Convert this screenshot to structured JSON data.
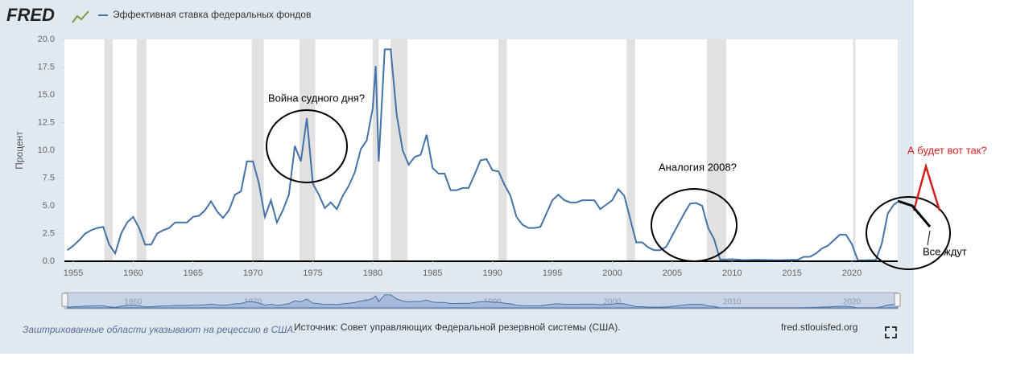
{
  "chart_data": {
    "type": "line",
    "logo": "FRED",
    "legend_label": "Эффективная ставка федеральных фондов",
    "y_label": "Процент",
    "annotations": [
      "Война судного дня?",
      "Аналогия 2008?",
      "А будет вот так?",
      "Все ждут"
    ],
    "footnote": "Заштрихованные области указывают на рецессию в США.",
    "source": "Источник: Совет управляющих Федеральной резервной системы (США).",
    "site": "fred.stlouisfed.org",
    "color": "#4572a7",
    "recession_color": "#e1e1e1",
    "xlim": [
      1954.26,
      2023.83
    ],
    "ylim": [
      0,
      20
    ],
    "xticks": [
      1955,
      1960,
      1965,
      1970,
      1975,
      1980,
      1985,
      1990,
      1995,
      2000,
      2005,
      2010,
      2015,
      2020
    ],
    "yticks": [
      {
        "value": 0,
        "label": "0.0"
      },
      2.5,
      {
        "value": 5,
        "label": "5.0"
      },
      7.5,
      {
        "value": 10,
        "label": "10.0"
      },
      12.5,
      {
        "value": 15,
        "label": "15.0"
      },
      17.5,
      {
        "value": 20,
        "label": "20.0"
      }
    ],
    "navigator_ticks": [
      1960,
      1970,
      1980,
      1990,
      2000,
      2010,
      2020
    ],
    "recessions": [
      [
        1957.6,
        1958.3
      ],
      [
        1960.3,
        1961.1
      ],
      [
        1969.9,
        1970.9
      ],
      [
        1973.9,
        1975.2
      ],
      [
        1980.0,
        1980.5
      ],
      [
        1981.5,
        1982.9
      ],
      [
        1990.5,
        1991.2
      ],
      [
        2001.2,
        2001.9
      ],
      [
        2007.9,
        2009.5
      ],
      [
        2020.1,
        2020.3
      ]
    ],
    "x": [
      1954.5,
      1955,
      1955.5,
      1956,
      1956.5,
      1957,
      1957.5,
      1958,
      1958.5,
      1959,
      1959.5,
      1960,
      1960.5,
      1961,
      1961.5,
      1962,
      1962.5,
      1963,
      1963.5,
      1964,
      1964.5,
      1965,
      1965.5,
      1966,
      1966.5,
      1967,
      1967.5,
      1968,
      1968.5,
      1969,
      1969.5,
      1970,
      1970.5,
      1971,
      1971.5,
      1972,
      1972.5,
      1973,
      1973.5,
      1974,
      1974.5,
      1975,
      1975.5,
      1976,
      1976.5,
      1977,
      1977.5,
      1978,
      1978.5,
      1979,
      1979.5,
      1980,
      1980.25,
      1980.5,
      1981,
      1981.5,
      1982,
      1982.5,
      1983,
      1983.5,
      1984,
      1984.5,
      1985,
      1985.5,
      1986,
      1986.5,
      1987,
      1987.5,
      1988,
      1988.5,
      1989,
      1989.5,
      1990,
      1990.5,
      1991,
      1991.5,
      1992,
      1992.5,
      1993,
      1993.5,
      1994,
      1994.5,
      1995,
      1995.5,
      1996,
      1996.5,
      1997,
      1997.5,
      1998,
      1998.5,
      1999,
      1999.5,
      2000,
      2000.5,
      2001,
      2001.5,
      2002,
      2002.5,
      2003,
      2003.5,
      2004,
      2004.5,
      2005,
      2005.5,
      2006,
      2006.5,
      2007,
      2007.5,
      2008,
      2008.5,
      2009,
      2009.5,
      2010,
      2011,
      2012,
      2013,
      2014,
      2015,
      2015.5,
      2016,
      2016.5,
      2017,
      2017.5,
      2018,
      2018.5,
      2019,
      2019.5,
      2020,
      2020.5,
      2021,
      2021.5,
      2022,
      2022.5,
      2023,
      2023.5,
      2023.8
    ],
    "series": [
      {
        "name": "Эффективная ставка федеральных фондов",
        "values": [
          1.0,
          1.4,
          1.9,
          2.5,
          2.8,
          3.0,
          3.1,
          1.5,
          0.7,
          2.5,
          3.5,
          4.0,
          3.0,
          1.5,
          1.5,
          2.5,
          2.8,
          3.0,
          3.5,
          3.5,
          3.5,
          4.0,
          4.1,
          4.6,
          5.4,
          4.5,
          3.9,
          4.6,
          6.0,
          6.3,
          9.0,
          9.0,
          7.0,
          4.0,
          5.5,
          3.5,
          4.6,
          6.0,
          10.4,
          9.0,
          12.9,
          7.0,
          6.0,
          4.8,
          5.3,
          4.7,
          5.9,
          6.8,
          8.0,
          10.1,
          10.9,
          13.8,
          17.6,
          9.0,
          19.1,
          19.1,
          13.2,
          10.0,
          8.7,
          9.4,
          9.6,
          11.4,
          8.4,
          7.9,
          7.9,
          6.4,
          6.4,
          6.6,
          6.6,
          7.8,
          9.1,
          9.2,
          8.2,
          8.1,
          6.9,
          5.9,
          4.0,
          3.3,
          3.0,
          3.0,
          3.1,
          4.3,
          5.5,
          6.0,
          5.5,
          5.3,
          5.3,
          5.5,
          5.5,
          5.5,
          4.7,
          5.1,
          5.5,
          6.5,
          5.9,
          3.8,
          1.7,
          1.7,
          1.25,
          1.0,
          1.0,
          1.3,
          2.3,
          3.3,
          4.3,
          5.2,
          5.25,
          5.0,
          3.0,
          2.0,
          0.15,
          0.15,
          0.18,
          0.1,
          0.14,
          0.11,
          0.09,
          0.13,
          0.14,
          0.4,
          0.4,
          0.7,
          1.15,
          1.4,
          1.9,
          2.4,
          2.4,
          1.55,
          0.08,
          0.08,
          0.1,
          0.1,
          1.6,
          4.3,
          5.1,
          5.33
        ]
      }
    ]
  }
}
